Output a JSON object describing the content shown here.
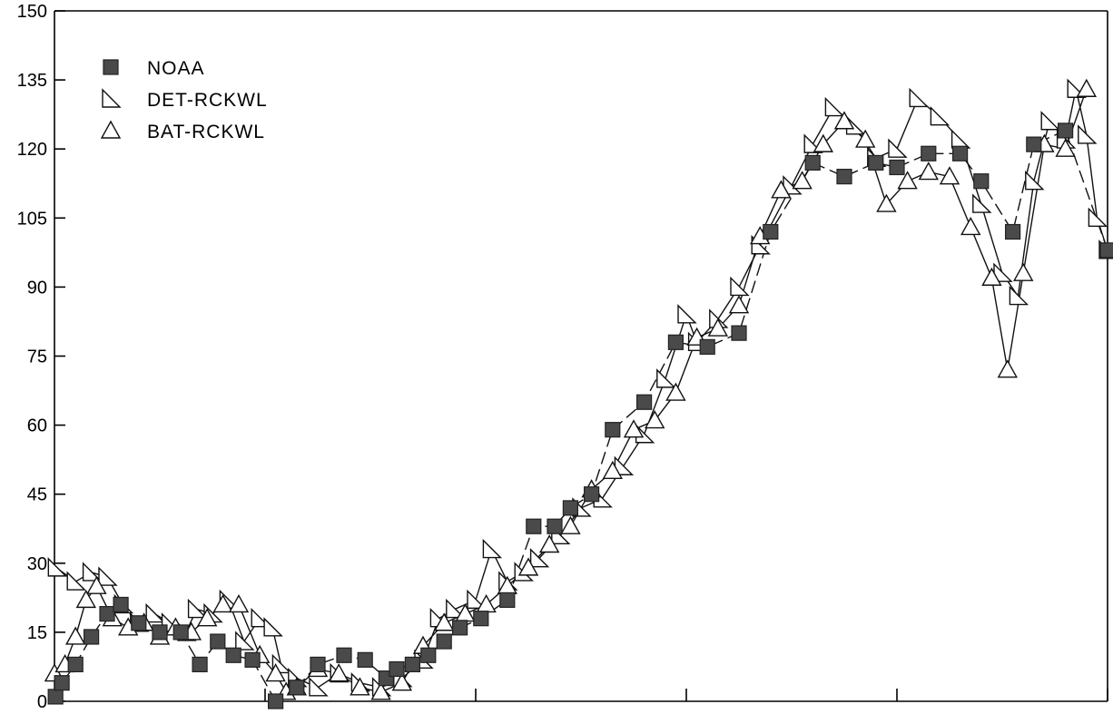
{
  "chart_data": {
    "type": "line",
    "title": "",
    "xlabel": "",
    "ylabel": "",
    "ylim": [
      0,
      150
    ],
    "xlim": [
      0,
      100
    ],
    "yticks": [
      0,
      15,
      30,
      45,
      60,
      75,
      90,
      105,
      120,
      135,
      150
    ],
    "ytick_labels": [
      "0",
      "15",
      "30",
      "45",
      "60",
      "75",
      "90",
      "105",
      "120",
      "135",
      "150"
    ],
    "xticks": [
      0,
      20,
      40,
      60,
      80,
      100
    ],
    "grid": false,
    "legend_position": "top-left",
    "series": [
      {
        "name": "NOAA",
        "marker": "filled-square",
        "line_style": "dashed",
        "color": "#4a4a4a",
        "points": [
          [
            0.1,
            1
          ],
          [
            0.7,
            4
          ],
          [
            2,
            8
          ],
          [
            3.5,
            14
          ],
          [
            5,
            19
          ],
          [
            6.3,
            21
          ],
          [
            8,
            17
          ],
          [
            10,
            15
          ],
          [
            12,
            15
          ],
          [
            13.8,
            8
          ],
          [
            15.5,
            13
          ],
          [
            17,
            10
          ],
          [
            18.8,
            9
          ],
          [
            21,
            0
          ],
          [
            23,
            3
          ],
          [
            25,
            8
          ],
          [
            27.5,
            10
          ],
          [
            29.5,
            9
          ],
          [
            31.5,
            5
          ],
          [
            32.5,
            7
          ],
          [
            34,
            8
          ],
          [
            35.5,
            10
          ],
          [
            37,
            13
          ],
          [
            38.5,
            16
          ],
          [
            40.5,
            18
          ],
          [
            43,
            22
          ],
          [
            45.5,
            38
          ],
          [
            47.5,
            38
          ],
          [
            49,
            42
          ],
          [
            51,
            45
          ],
          [
            53,
            59
          ],
          [
            56,
            65
          ],
          [
            59,
            78
          ],
          [
            62,
            77
          ],
          [
            65,
            80
          ],
          [
            68,
            102
          ],
          [
            72,
            117
          ],
          [
            75,
            114
          ],
          [
            78,
            117
          ],
          [
            80,
            116
          ],
          [
            83,
            119
          ],
          [
            86,
            119
          ],
          [
            88,
            113
          ],
          [
            91,
            102
          ],
          [
            93,
            121
          ],
          [
            96,
            124
          ],
          [
            100,
            98
          ]
        ]
      },
      {
        "name": "DET-RCKWL",
        "marker": "right-triangle",
        "line_style": "solid",
        "color": "#111111",
        "points": [
          [
            0.2,
            29
          ],
          [
            2,
            26
          ],
          [
            3.5,
            28
          ],
          [
            5,
            27
          ],
          [
            6.5,
            21
          ],
          [
            8,
            17
          ],
          [
            9.5,
            19
          ],
          [
            11,
            17
          ],
          [
            12.5,
            15
          ],
          [
            13.5,
            20
          ],
          [
            15,
            19
          ],
          [
            16.5,
            22
          ],
          [
            18,
            13
          ],
          [
            19.5,
            18
          ],
          [
            20.7,
            16
          ],
          [
            21.5,
            8
          ],
          [
            23,
            5
          ],
          [
            25,
            3
          ],
          [
            27,
            6
          ],
          [
            29,
            4
          ],
          [
            31,
            3
          ],
          [
            33,
            5
          ],
          [
            35,
            9
          ],
          [
            36.5,
            18
          ],
          [
            38,
            20
          ],
          [
            40,
            22
          ],
          [
            41.5,
            33
          ],
          [
            43,
            26
          ],
          [
            44.5,
            28
          ],
          [
            46,
            31
          ],
          [
            48,
            36
          ],
          [
            50,
            42
          ],
          [
            52,
            44
          ],
          [
            54,
            51
          ],
          [
            56,
            58
          ],
          [
            58,
            70
          ],
          [
            60,
            84
          ],
          [
            61,
            78
          ],
          [
            63,
            83
          ],
          [
            65,
            90
          ],
          [
            67,
            99
          ],
          [
            70,
            112
          ],
          [
            72,
            121
          ],
          [
            74,
            129
          ],
          [
            76,
            125
          ],
          [
            78,
            118
          ],
          [
            80,
            120
          ],
          [
            82,
            131
          ],
          [
            84,
            127
          ],
          [
            86,
            122
          ],
          [
            88,
            108
          ],
          [
            90,
            93
          ],
          [
            91.5,
            88
          ],
          [
            93,
            113
          ],
          [
            94.5,
            126
          ],
          [
            96,
            122
          ],
          [
            97,
            133
          ],
          [
            98,
            123
          ],
          [
            99,
            105
          ],
          [
            100,
            98
          ]
        ]
      },
      {
        "name": "BAT-RCKWL",
        "marker": "triangle",
        "line_style": "solid",
        "color": "#111111",
        "points": [
          [
            0,
            6
          ],
          [
            1,
            8
          ],
          [
            2,
            14
          ],
          [
            3,
            22
          ],
          [
            4,
            25
          ],
          [
            5.5,
            18
          ],
          [
            7,
            16
          ],
          [
            8.5,
            17
          ],
          [
            10,
            14
          ],
          [
            11.5,
            16
          ],
          [
            13,
            15
          ],
          [
            14.5,
            18
          ],
          [
            16,
            21
          ],
          [
            17.5,
            21
          ],
          [
            19.5,
            10
          ],
          [
            21,
            6
          ],
          [
            22,
            2
          ],
          [
            23,
            3
          ],
          [
            25,
            7
          ],
          [
            27,
            6
          ],
          [
            29,
            3
          ],
          [
            31,
            2
          ],
          [
            33,
            4
          ],
          [
            35,
            12
          ],
          [
            37,
            17
          ],
          [
            39,
            19
          ],
          [
            41,
            21
          ],
          [
            43,
            25
          ],
          [
            45,
            29
          ],
          [
            47,
            34
          ],
          [
            49,
            38
          ],
          [
            51,
            46
          ],
          [
            53,
            50
          ],
          [
            55,
            59
          ],
          [
            57,
            61
          ],
          [
            59,
            67
          ],
          [
            61,
            79
          ],
          [
            63,
            81
          ],
          [
            65,
            86
          ],
          [
            67,
            101
          ],
          [
            69,
            111
          ],
          [
            71,
            113
          ],
          [
            73,
            121
          ],
          [
            75,
            126
          ],
          [
            77,
            122
          ],
          [
            79,
            108
          ],
          [
            81,
            113
          ],
          [
            83,
            115
          ],
          [
            85,
            114
          ],
          [
            87,
            103
          ],
          [
            89,
            92
          ],
          [
            90.5,
            72
          ],
          [
            92,
            93
          ],
          [
            94,
            121
          ],
          [
            96,
            120
          ],
          [
            98,
            133
          ]
        ]
      }
    ]
  }
}
